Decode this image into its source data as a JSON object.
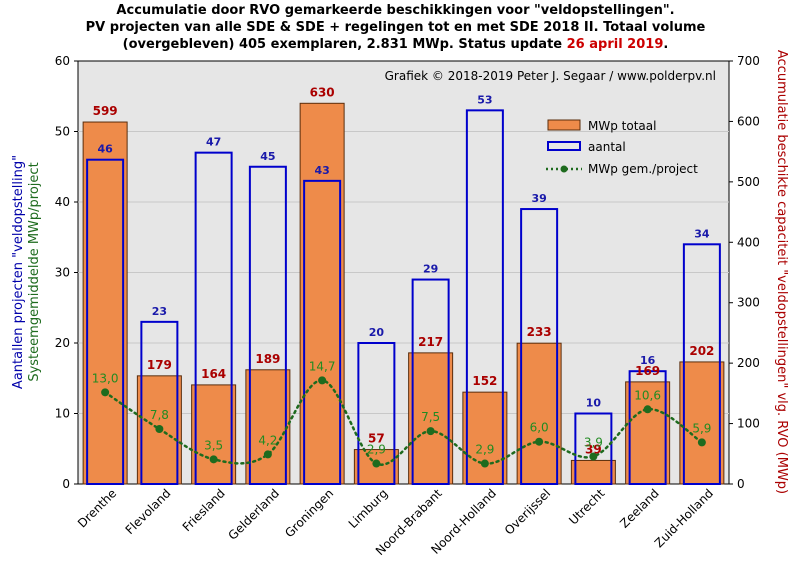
{
  "title": {
    "line1": "Accumulatie door RVO gemarkeerde beschikkingen voor \"veldopstellingen\".",
    "line2": "PV projecten van alle SDE & SDE + regelingen tot en met SDE 2018 II. Totaal volume",
    "line3_pre": "(overgebleven) 405 exemplaren, 2.831 MWp. Status update ",
    "line3_date": "26 april 2019",
    "line3_post": "."
  },
  "credit": "Grafiek © 2018-2019 Peter J. Segaar / www.polderpv.nl",
  "axes": {
    "left_title_line1": "Aantallen projecten \"veldopstelling\"",
    "left_title_line2": "Systeemgemiddelde MWp/project",
    "right_title": "Accumulatie beschikte capaciteit \"veldopstellingen\" vlg. RVO (MWp)"
  },
  "legend": {
    "mwp": "MWp totaal",
    "count": "aantal",
    "avg": "MWp gem./project"
  },
  "colors": {
    "bar_fill": "#ee8b4a",
    "bar_stroke": "#5a2d0c",
    "count_stroke": "#0000cc",
    "avg_line": "#1e6b1e",
    "avg_label": "#228b22",
    "mw_label": "#aa0000",
    "count_label": "#1a1aaa",
    "plot_bg": "#e6e6e6",
    "date_red": "#cc0000"
  },
  "chart_data": {
    "type": "bar",
    "categories": [
      "Drenthe",
      "Flevoland",
      "Friesland",
      "Gelderland",
      "Groningen",
      "Limburg",
      "Noord-Brabant",
      "Noord-Holland",
      "Overijssel",
      "Utrecht",
      "Zeeland",
      "Zuid-Holland"
    ],
    "series": [
      {
        "name": "MWp totaal",
        "axis": "right",
        "style": "filled-bar",
        "values": [
          599,
          179,
          164,
          189,
          630,
          57,
          217,
          152,
          233,
          39,
          169,
          202
        ],
        "labels": [
          "599",
          "179",
          "164",
          "189",
          "630",
          "57",
          "217",
          "152",
          "233",
          "39",
          "169",
          "202"
        ]
      },
      {
        "name": "aantal",
        "axis": "left",
        "style": "outline-bar",
        "values": [
          46,
          23,
          47,
          45,
          43,
          20,
          29,
          53,
          39,
          10,
          16,
          34
        ],
        "labels": [
          "46",
          "23",
          "47",
          "45",
          "43",
          "20",
          "29",
          "53",
          "39",
          "10",
          "16",
          "34"
        ]
      },
      {
        "name": "MWp gem./project",
        "axis": "left",
        "style": "dotted-line",
        "values": [
          13.0,
          7.8,
          3.5,
          4.2,
          14.7,
          2.9,
          7.5,
          2.9,
          6.0,
          3.9,
          10.6,
          5.9
        ],
        "labels": [
          "13,0",
          "7,8",
          "3,5",
          "4,2",
          "14,7",
          "2,9",
          "7,5",
          "2,9",
          "6,0",
          "3,9",
          "10,6",
          "5,9"
        ]
      }
    ],
    "ylim_left": [
      0,
      60
    ],
    "yticks_left": [
      "0",
      "10",
      "20",
      "30",
      "40",
      "50",
      "60"
    ],
    "ylim_right": [
      0,
      700
    ],
    "yticks_right": [
      "0",
      "100",
      "200",
      "300",
      "400",
      "500",
      "600",
      "700"
    ],
    "grid": true,
    "legend_position": "top-right"
  }
}
